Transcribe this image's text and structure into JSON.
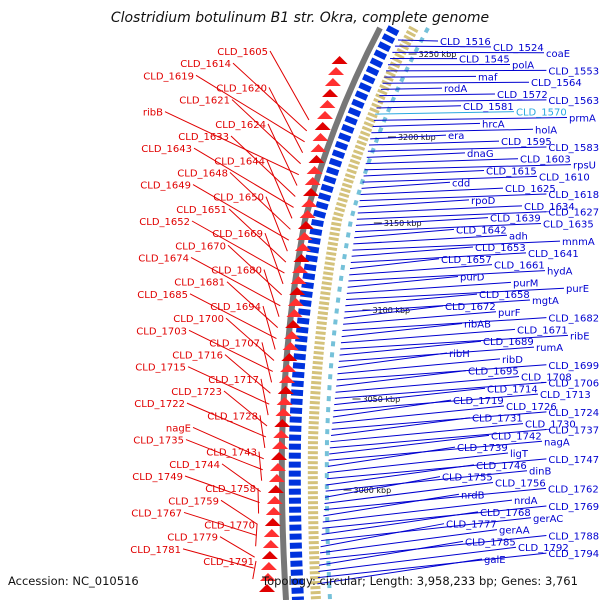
{
  "title": "Clostridium botulinum B1 str. Okra, complete genome",
  "footer": {
    "accession": "Accession: NC_010516",
    "topology": "Topology: circular; Length: 3,958,233 bp; Genes: 3,761"
  },
  "ticks": [
    "3250 kbp",
    "3200 kbp",
    "3150 kbp",
    "3100 kbp",
    "3050 kbp",
    "3000 kbp"
  ],
  "labels_left": [
    "CLD_1605",
    "CLD_1614",
    "CLD_1619",
    "CLD_1620",
    "CLD_1621",
    "ribB",
    "CLD_1624",
    "CLD_1633",
    "CLD_1643",
    "CLD_1644",
    "CLD_1648",
    "CLD_1649",
    "CLD_1650",
    "CLD_1651",
    "CLD_1652",
    "CLD_1669",
    "CLD_1670",
    "CLD_1674",
    "CLD_1680",
    "CLD_1681",
    "CLD_1685",
    "CLD_1694",
    "CLD_1700",
    "CLD_1703",
    "CLD_1707",
    "CLD_1716",
    "CLD_1715",
    "CLD_1717",
    "CLD_1723",
    "CLD_1722",
    "CLD_1728",
    "nagE",
    "CLD_1735",
    "CLD_1743",
    "CLD_1744",
    "CLD_1749",
    "CLD_1758",
    "CLD_1759",
    "CLD_1767",
    "CLD_1770",
    "CLD_1779",
    "CLD_1781",
    "CLD_1791"
  ],
  "labels_right": [
    "CLD_1516",
    "CLD_1524",
    "coaE",
    "CLD_1545",
    "polA",
    "CLD_1553",
    "maf",
    "CLD_1564",
    "rodA",
    "CLD_1572",
    "CLD_1563",
    "CLD_1581",
    "CLD_1570",
    "prmA",
    "hrcA",
    "holA",
    "era",
    "CLD_1595",
    "CLD_1583",
    "dnaG",
    "CLD_1603",
    "rpsU",
    "CLD_1615",
    "CLD_1610",
    "cdd",
    "CLD_1625",
    "CLD_1618",
    "rpoD",
    "CLD_1634",
    "CLD_1627",
    "CLD_1639",
    "CLD_1635",
    "CLD_1642",
    "adh",
    "mnmA",
    "CLD_1653",
    "CLD_1641",
    "CLD_1657",
    "CLD_1661",
    "hydA",
    "purD",
    "purM",
    "purE",
    "CLD_1658",
    "mgtA",
    "CLD_1672",
    "purF",
    "CLD_1682",
    "ribAB",
    "CLD_1671",
    "ribE",
    "CLD_1689",
    "rumA",
    "ribH",
    "ribD",
    "CLD_1699",
    "CLD_1695",
    "CLD_1708",
    "CLD_1706",
    "CLD_1714",
    "CLD_1713",
    "CLD_1719",
    "CLD_1726",
    "CLD_1724",
    "CLD_1731",
    "CLD_1730",
    "CLD_1737",
    "CLD_1742",
    "nagA",
    "CLD_1739",
    "ligT",
    "CLD_1747",
    "CLD_1746",
    "dinB",
    "CLD_1755",
    "CLD_1756",
    "CLD_1762",
    "nrdB",
    "nrdA",
    "CLD_1769",
    "CLD_1768",
    "gerAC",
    "CLD_1777",
    "gerAA",
    "CLD_1788",
    "CLD_1785",
    "CLD_1792",
    "CLD_1794",
    "galE"
  ],
  "colors": {
    "red": "#e00000",
    "blue": "#0000d0",
    "cyan": "#2aa9e0"
  }
}
